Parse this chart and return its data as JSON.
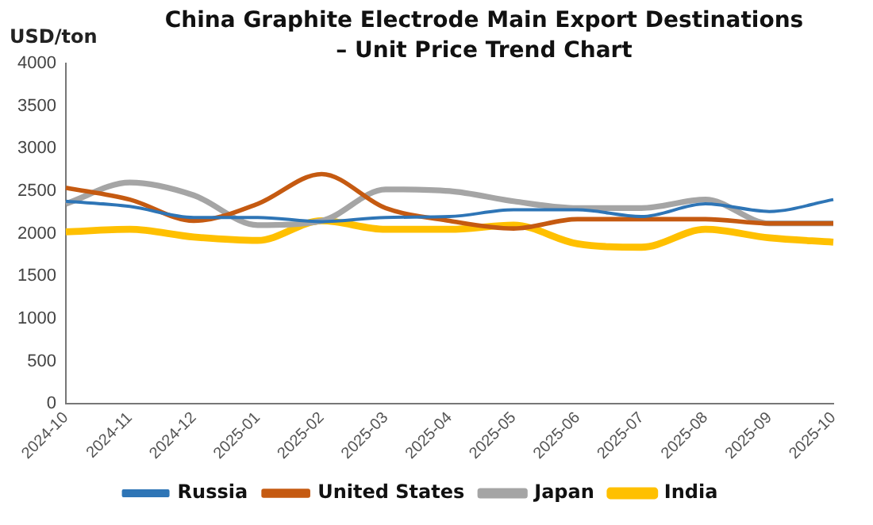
{
  "chart_data": {
    "type": "line",
    "title": "China Graphite Electrode Main Export Destinations\n– Unit Price Trend Chart",
    "ylabel": "USD/ton",
    "categories": [
      "2024-10",
      "2024-11",
      "2024-12",
      "2025-01",
      "2025-02",
      "2025-03",
      "2025-04",
      "2025-05",
      "2025-06",
      "2025-07",
      "2025-08",
      "2025-09",
      "2025-10"
    ],
    "series": [
      {
        "name": "Russia",
        "color": "#2e75b6",
        "values": [
          2380,
          2320,
          2190,
          2190,
          2140,
          2190,
          2200,
          2280,
          2280,
          2200,
          2350,
          2260,
          2400
        ]
      },
      {
        "name": "United States",
        "color": "#c55a11",
        "values": [
          2540,
          2400,
          2150,
          2350,
          2700,
          2300,
          2150,
          2060,
          2170,
          2170,
          2170,
          2120,
          2120
        ]
      },
      {
        "name": "Japan",
        "color": "#a5a5a5",
        "values": [
          2350,
          2600,
          2450,
          2100,
          2150,
          2520,
          2500,
          2380,
          2300,
          2300,
          2400,
          2120,
          2120
        ]
      },
      {
        "name": "India",
        "color": "#ffc000",
        "values": [
          2020,
          2050,
          1960,
          1920,
          2150,
          2050,
          2050,
          2100,
          1880,
          1840,
          2050,
          1950,
          1900
        ]
      }
    ],
    "ylim": [
      0,
      4000
    ],
    "yticks": [
      0,
      500,
      1000,
      1500,
      2000,
      2500,
      3000,
      3500,
      4000
    ],
    "grid": false,
    "legend": "bottom",
    "marker": "none",
    "line_style": "solid"
  }
}
